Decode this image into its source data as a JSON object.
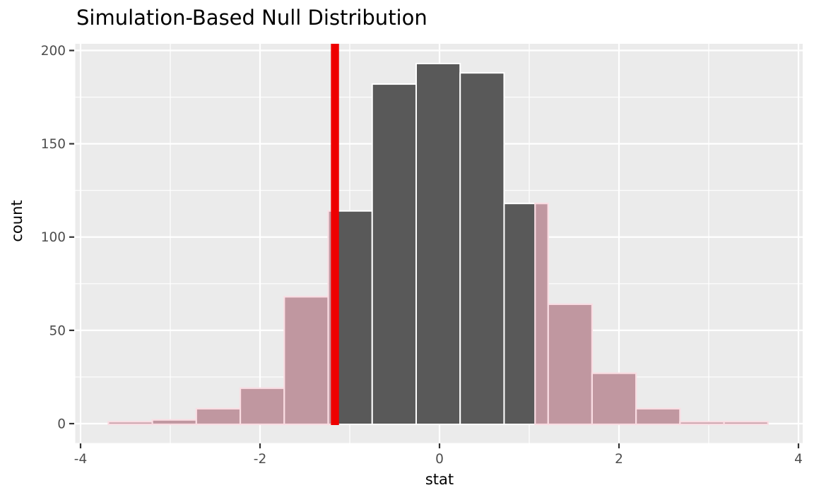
{
  "chart_data": {
    "type": "bar",
    "subtype": "histogram-with-shaded-p-value",
    "title": "Simulation-Based Null Distribution",
    "xlabel": "stat",
    "ylabel": "count",
    "x_ticks": [
      -4,
      -2,
      0,
      2,
      4
    ],
    "y_ticks": [
      0,
      50,
      100,
      150,
      200
    ],
    "xlim": [
      -4.06,
      4.05
    ],
    "ylim": [
      -10,
      203
    ],
    "grid": "major-and-minor",
    "legend_position": "none",
    "bin_width": 0.49,
    "bins": [
      {
        "from": -3.69,
        "to": -3.2,
        "count": 1,
        "region": "left-tail"
      },
      {
        "from": -3.2,
        "to": -2.71,
        "count": 2,
        "region": "left-tail"
      },
      {
        "from": -2.71,
        "to": -2.22,
        "count": 8,
        "region": "left-tail"
      },
      {
        "from": -2.22,
        "to": -1.73,
        "count": 19,
        "region": "left-tail"
      },
      {
        "from": -1.73,
        "to": -1.24,
        "count": 68,
        "region": "left-tail"
      },
      {
        "from": -1.24,
        "to": -0.75,
        "count": 114,
        "region": "null"
      },
      {
        "from": -0.75,
        "to": -0.26,
        "count": 182,
        "region": "null"
      },
      {
        "from": -0.26,
        "to": 0.23,
        "count": 193,
        "region": "null"
      },
      {
        "from": 0.23,
        "to": 0.72,
        "count": 188,
        "region": "null"
      },
      {
        "from": 0.72,
        "to": 1.21,
        "count": 118,
        "region": "null"
      },
      {
        "from": 1.21,
        "to": 1.7,
        "count": 64,
        "region": "right-tail"
      },
      {
        "from": 1.7,
        "to": 2.19,
        "count": 27,
        "region": "right-tail"
      },
      {
        "from": 2.19,
        "to": 2.68,
        "count": 8,
        "region": "right-tail"
      },
      {
        "from": 2.68,
        "to": 3.17,
        "count": 1,
        "region": "right-tail"
      },
      {
        "from": 3.17,
        "to": 3.66,
        "count": 1,
        "region": "right-tail"
      }
    ],
    "shade_overlays": [
      {
        "from": -1.24,
        "to": -1.165,
        "count": 114
      },
      {
        "from": 1.065,
        "to": 1.21,
        "count": 118
      }
    ],
    "obs_stat": -1.165,
    "colors": {
      "observed_line": "#EE0000",
      "bar_fill": "#595959",
      "bar_stroke": "#FFFFFF",
      "tail_fill": "#C097A0",
      "tail_stroke": "#FADDE3",
      "panel_bg": "#EBEBEB",
      "grid_line": "#FFFFFF",
      "tick_text": "#4D4D4D",
      "tick_mark": "#333333",
      "title_text": "#000000",
      "background": "#FFFFFF"
    }
  }
}
